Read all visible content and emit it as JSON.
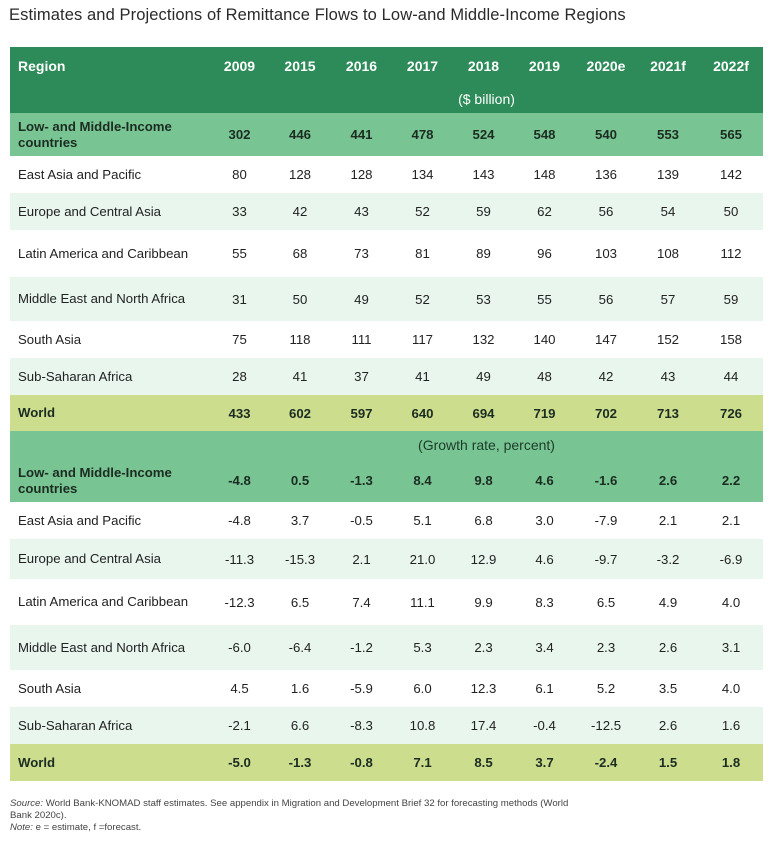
{
  "title": "Estimates and Projections of Remittance Flows to Low-and Middle-Income Regions",
  "header": {
    "region_label": "Region",
    "years": [
      "2009",
      "2015",
      "2016",
      "2017",
      "2018",
      "2019",
      "2020e",
      "2021f",
      "2022f"
    ]
  },
  "units_label": "($ billion)",
  "growth_label": "(Growth rate, percent)",
  "billion_rows": [
    {
      "region": "Low- and Middle-Income countries",
      "values": [
        "302",
        "446",
        "441",
        "478",
        "524",
        "548",
        "540",
        "553",
        "565"
      ]
    },
    {
      "region": "East Asia and Pacific",
      "values": [
        "80",
        "128",
        "128",
        "134",
        "143",
        "148",
        "136",
        "139",
        "142"
      ]
    },
    {
      "region": "Europe and Central Asia",
      "values": [
        "33",
        "42",
        "43",
        "52",
        "59",
        "62",
        "56",
        "54",
        "50"
      ]
    },
    {
      "region": "Latin America and Caribbean",
      "values": [
        "55",
        "68",
        "73",
        "81",
        "89",
        "96",
        "103",
        "108",
        "112"
      ]
    },
    {
      "region": "Middle East and North Africa",
      "values": [
        "31",
        "50",
        "49",
        "52",
        "53",
        "55",
        "56",
        "57",
        "59"
      ]
    },
    {
      "region": "South Asia",
      "values": [
        "75",
        "118",
        "111",
        "117",
        "132",
        "140",
        "147",
        "152",
        "158"
      ]
    },
    {
      "region": "Sub-Saharan Africa",
      "values": [
        "28",
        "41",
        "37",
        "41",
        "49",
        "48",
        "42",
        "43",
        "44"
      ]
    },
    {
      "region": "World",
      "values": [
        "433",
        "602",
        "597",
        "640",
        "694",
        "719",
        "702",
        "713",
        "726"
      ]
    }
  ],
  "growth_rows": [
    {
      "region": "Low- and Middle-Income countries",
      "values": [
        "-4.8",
        "0.5",
        "-1.3",
        "8.4",
        "9.8",
        "4.6",
        "-1.6",
        "2.6",
        "2.2"
      ]
    },
    {
      "region": "East Asia and Pacific",
      "values": [
        "-4.8",
        "3.7",
        "-0.5",
        "5.1",
        "6.8",
        "3.0",
        "-7.9",
        "2.1",
        "2.1"
      ]
    },
    {
      "region": "Europe and Central Asia",
      "values": [
        "-11.3",
        "-15.3",
        "2.1",
        "21.0",
        "12.9",
        "4.6",
        "-9.7",
        "-3.2",
        "-6.9"
      ]
    },
    {
      "region": "Latin America and Caribbean",
      "values": [
        "-12.3",
        "6.5",
        "7.4",
        "11.1",
        "9.9",
        "8.3",
        "6.5",
        "4.9",
        "4.0"
      ]
    },
    {
      "region": "Middle East and North Africa",
      "values": [
        "-6.0",
        "-6.4",
        "-1.2",
        "5.3",
        "2.3",
        "3.4",
        "2.3",
        "2.6",
        "3.1"
      ]
    },
    {
      "region": "South Asia",
      "values": [
        "4.5",
        "1.6",
        "-5.9",
        "6.0",
        "12.3",
        "6.1",
        "5.2",
        "3.5",
        "4.0"
      ]
    },
    {
      "region": "Sub-Saharan Africa",
      "values": [
        "-2.1",
        "6.6",
        "-8.3",
        "10.8",
        "17.4",
        "-0.4",
        "-12.5",
        "2.6",
        "1.6"
      ]
    },
    {
      "region": "World",
      "values": [
        "-5.0",
        "-1.3",
        "-0.8",
        "7.1",
        "8.5",
        "3.7",
        "-2.4",
        "1.5",
        "1.8"
      ]
    }
  ],
  "footer": {
    "source_label": "Source:",
    "source_text": " World Bank-KNOMAD staff estimates. See appendix in Migration and Development Brief 32 for forecasting methods (World",
    "source_text2": "Bank 2020c).",
    "note_label": "Note:",
    "note_text": " e = estimate, f =forecast."
  },
  "colors": {
    "header_green": "#2c8b58",
    "group_green": "#78c593",
    "alt_row": "#e9f6ee",
    "world_row": "#ccdd8e"
  }
}
